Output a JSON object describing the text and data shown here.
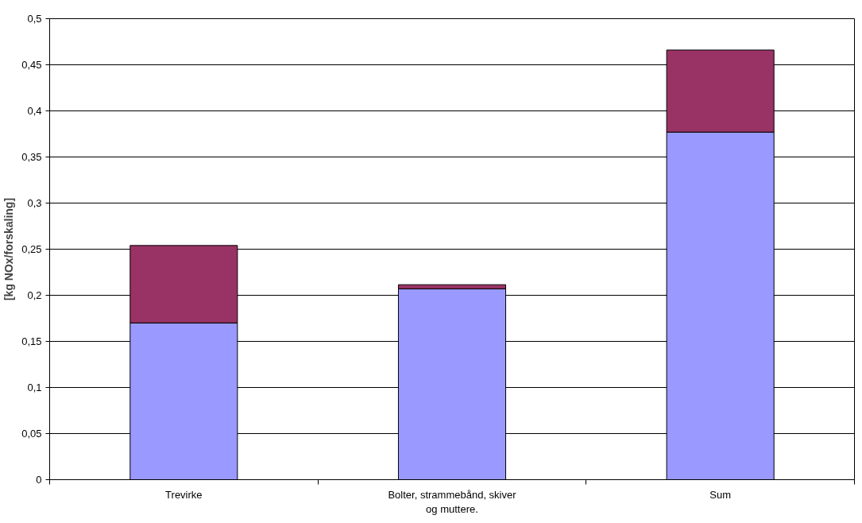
{
  "chart_data": {
    "type": "bar",
    "stacked": true,
    "ylabel": "[kg NOx/forskaling]",
    "categories": [
      "Trevirke",
      "Bolter, strammebånd, skiver og muttere.",
      "Sum"
    ],
    "series": [
      {
        "color": "#9999ff",
        "values": [
          0.17,
          0.207,
          0.377
        ]
      },
      {
        "color": "#993366",
        "values": [
          0.084,
          0.0045,
          0.089
        ]
      }
    ],
    "ylim": [
      0,
      0.5
    ],
    "yticks": [
      {
        "value": 0,
        "label": "0"
      },
      {
        "value": 0.05,
        "label": "0,05"
      },
      {
        "value": 0.1,
        "label": "0,1"
      },
      {
        "value": 0.15,
        "label": "0,15"
      },
      {
        "value": 0.2,
        "label": "0,2"
      },
      {
        "value": 0.25,
        "label": "0,25"
      },
      {
        "value": 0.3,
        "label": "0,3"
      },
      {
        "value": 0.35,
        "label": "0,35"
      },
      {
        "value": 0.4,
        "label": "0,4"
      },
      {
        "value": 0.45,
        "label": "0,45"
      },
      {
        "value": 0.5,
        "label": "0,5"
      }
    ],
    "grid": "y"
  }
}
